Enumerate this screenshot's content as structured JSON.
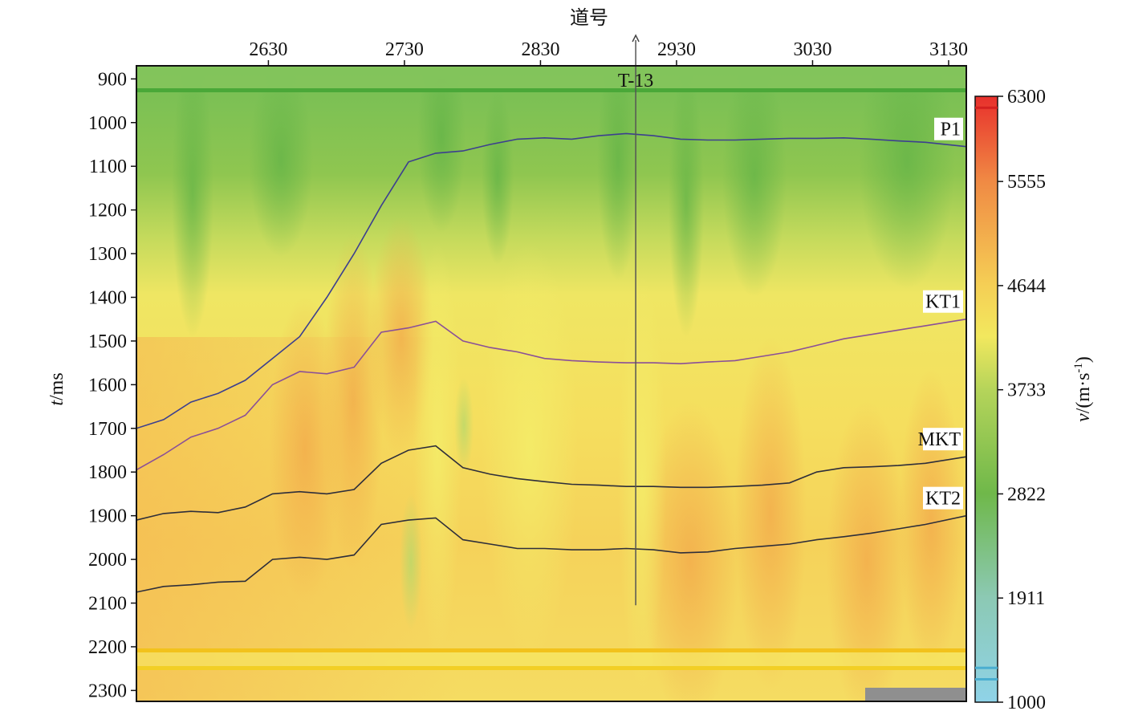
{
  "chart_data": {
    "type": "heatmap",
    "title": "",
    "xlabel": "道号",
    "ylabel_italic": "t",
    "ylabel_unit": "/ms",
    "xlim": [
      2533,
      3143
    ],
    "ylim": [
      870,
      2325
    ],
    "x_ticks": [
      2630,
      2730,
      2830,
      2930,
      3030,
      3130
    ],
    "y_ticks": [
      900,
      1000,
      1100,
      1200,
      1300,
      1400,
      1500,
      1600,
      1700,
      1800,
      1900,
      2000,
      2100,
      2200,
      2300
    ],
    "colorbar": {
      "label_italic": "v",
      "label_unit": "/(m·s",
      "label_sup": "-1",
      "label_close": ")",
      "range": [
        1000,
        6300
      ],
      "ticks": [
        1000,
        1911,
        2822,
        3733,
        4644,
        5555,
        6300
      ],
      "colors": [
        {
          "v": 1000,
          "c": "#8fd3e8"
        },
        {
          "v": 1911,
          "c": "#8cc9b4"
        },
        {
          "v": 2822,
          "c": "#6fb84a"
        },
        {
          "v": 3733,
          "c": "#b5d45a"
        },
        {
          "v": 4200,
          "c": "#f2e85e"
        },
        {
          "v": 4644,
          "c": "#f5cf55"
        },
        {
          "v": 5555,
          "c": "#f08a44"
        },
        {
          "v": 6300,
          "c": "#e8302c"
        }
      ]
    },
    "well": {
      "label": "T-13",
      "x": 2900,
      "t_top": 870,
      "t_bottom": 2105
    },
    "horizons": [
      {
        "name": "P1",
        "color": "#3c3f8f",
        "x": [
          2533,
          2553,
          2573,
          2593,
          2613,
          2633,
          2653,
          2673,
          2693,
          2713,
          2733,
          2753,
          2773,
          2793,
          2813,
          2833,
          2853,
          2873,
          2893,
          2913,
          2933,
          2953,
          2973,
          2993,
          3013,
          3033,
          3053,
          3073,
          3093,
          3113,
          3143
        ],
        "t": [
          1700,
          1680,
          1640,
          1620,
          1590,
          1540,
          1490,
          1400,
          1300,
          1190,
          1090,
          1070,
          1065,
          1050,
          1038,
          1035,
          1038,
          1030,
          1025,
          1030,
          1038,
          1040,
          1040,
          1038,
          1036,
          1036,
          1035,
          1038,
          1042,
          1045,
          1055
        ]
      },
      {
        "name": "KT1",
        "color": "#8a4f98",
        "x": [
          2533,
          2553,
          2573,
          2593,
          2613,
          2633,
          2653,
          2673,
          2693,
          2713,
          2733,
          2753,
          2773,
          2793,
          2813,
          2833,
          2853,
          2873,
          2893,
          2913,
          2933,
          2953,
          2973,
          2993,
          3013,
          3033,
          3053,
          3073,
          3093,
          3113,
          3143
        ],
        "t": [
          1795,
          1760,
          1720,
          1700,
          1670,
          1600,
          1570,
          1575,
          1560,
          1480,
          1470,
          1455,
          1500,
          1515,
          1525,
          1540,
          1545,
          1548,
          1550,
          1550,
          1552,
          1548,
          1545,
          1535,
          1525,
          1510,
          1495,
          1485,
          1475,
          1465,
          1450
        ]
      },
      {
        "name": "MKT",
        "color": "#2e2e3a",
        "x": [
          2533,
          2553,
          2573,
          2593,
          2613,
          2633,
          2653,
          2673,
          2693,
          2713,
          2733,
          2753,
          2773,
          2793,
          2813,
          2833,
          2853,
          2873,
          2893,
          2913,
          2933,
          2953,
          2973,
          2993,
          3013,
          3033,
          3053,
          3073,
          3093,
          3113,
          3143
        ],
        "t": [
          1910,
          1895,
          1890,
          1893,
          1880,
          1850,
          1845,
          1850,
          1840,
          1780,
          1750,
          1740,
          1790,
          1805,
          1815,
          1822,
          1828,
          1830,
          1833,
          1833,
          1835,
          1835,
          1833,
          1830,
          1825,
          1800,
          1790,
          1788,
          1785,
          1780,
          1765
        ]
      },
      {
        "name": "KT2",
        "color": "#2e2e3a",
        "x": [
          2533,
          2553,
          2573,
          2593,
          2613,
          2633,
          2653,
          2673,
          2693,
          2713,
          2733,
          2753,
          2773,
          2793,
          2813,
          2833,
          2853,
          2873,
          2893,
          2913,
          2933,
          2953,
          2973,
          2993,
          3013,
          3033,
          3053,
          3073,
          3093,
          3113,
          3143
        ],
        "t": [
          2075,
          2062,
          2058,
          2052,
          2050,
          2000,
          1995,
          2000,
          1990,
          1920,
          1910,
          1905,
          1955,
          1965,
          1975,
          1975,
          1978,
          1978,
          1975,
          1978,
          1985,
          1983,
          1975,
          1970,
          1965,
          1955,
          1948,
          1940,
          1930,
          1920,
          1900
        ]
      }
    ],
    "legend": "none",
    "grid": false
  }
}
